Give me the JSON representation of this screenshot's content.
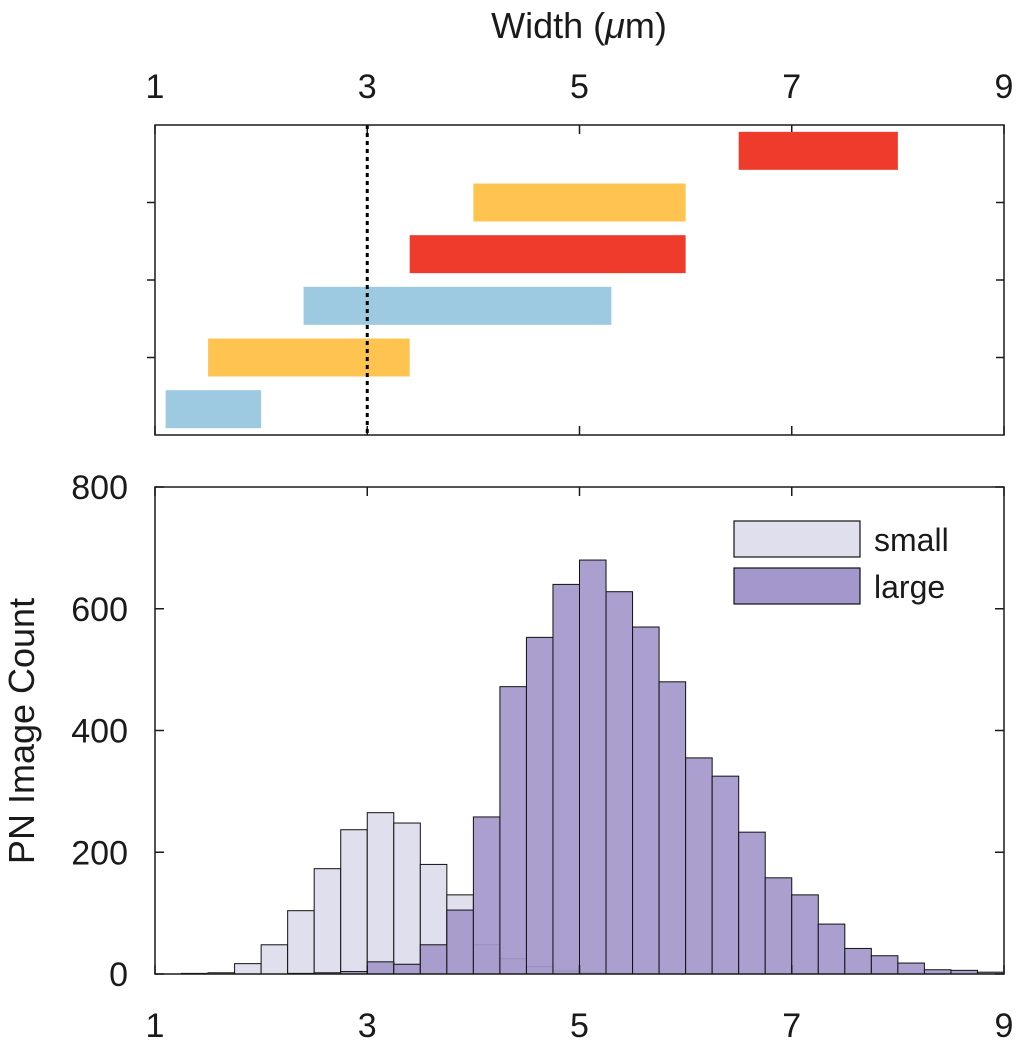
{
  "chart_data": [
    {
      "type": "bar",
      "subtype": "horizontal-range",
      "title": "",
      "xlabel": "Width (μm)",
      "xlabel_parts": {
        "prefix": "Width (",
        "symbol": "μ",
        "suffix": "m)"
      },
      "xlim": [
        1,
        9
      ],
      "xticks": [
        "1",
        "3",
        "5",
        "7",
        "9"
      ],
      "y_tick_count": 3,
      "reference_line": {
        "x": 3,
        "style": "dotted",
        "color": "#000000"
      },
      "ranges": [
        {
          "start": 1.1,
          "end": 2.0,
          "color": "#9ecae1"
        },
        {
          "start": 1.5,
          "end": 3.4,
          "color": "#fec44f"
        },
        {
          "start": 2.4,
          "end": 5.3,
          "color": "#9ecae1"
        },
        {
          "start": 3.4,
          "end": 6.0,
          "color": "#ef3b2c"
        },
        {
          "start": 4.0,
          "end": 6.0,
          "color": "#fec44f"
        },
        {
          "start": 6.5,
          "end": 8.0,
          "color": "#ef3b2c"
        }
      ],
      "grid": false
    },
    {
      "type": "bar",
      "subtype": "histogram",
      "title": "",
      "xlabel": "",
      "ylabel": "PN Image Count",
      "xlim": [
        1,
        9
      ],
      "ylim": [
        0,
        800
      ],
      "xticks": [
        "1",
        "3",
        "5",
        "7",
        "9"
      ],
      "yticks": [
        "0",
        "200",
        "400",
        "600",
        "800"
      ],
      "bin_width": 0.25,
      "legend": {
        "position": "top-right"
      },
      "grid": false,
      "series": [
        {
          "name": "small",
          "color": "#dfdfed",
          "bins": [
            [
              1.25,
              1
            ],
            [
              1.5,
              2
            ],
            [
              1.75,
              17
            ],
            [
              2.0,
              48
            ],
            [
              2.25,
              104
            ],
            [
              2.5,
              173
            ],
            [
              2.75,
              237
            ],
            [
              3.0,
              265
            ],
            [
              3.25,
              248
            ],
            [
              3.5,
              180
            ],
            [
              3.75,
              130
            ],
            [
              4.0,
              48
            ],
            [
              4.25,
              25
            ],
            [
              4.5,
              12
            ],
            [
              4.75,
              5
            ],
            [
              5.0,
              2
            ],
            [
              5.25,
              1
            ]
          ]
        },
        {
          "name": "large",
          "color": "#a497cb",
          "bins": [
            [
              2.25,
              1
            ],
            [
              2.5,
              2
            ],
            [
              2.75,
              4
            ],
            [
              3.0,
              20
            ],
            [
              3.25,
              16
            ],
            [
              3.5,
              48
            ],
            [
              3.75,
              105
            ],
            [
              4.0,
              258
            ],
            [
              4.25,
              472
            ],
            [
              4.5,
              553
            ],
            [
              4.75,
              640
            ],
            [
              5.0,
              680
            ],
            [
              5.25,
              628
            ],
            [
              5.5,
              570
            ],
            [
              5.75,
              480
            ],
            [
              6.0,
              355
            ],
            [
              6.25,
              325
            ],
            [
              6.5,
              233
            ],
            [
              6.75,
              158
            ],
            [
              7.0,
              130
            ],
            [
              7.25,
              82
            ],
            [
              7.5,
              42
            ],
            [
              7.75,
              30
            ],
            [
              8.0,
              18
            ],
            [
              8.25,
              7
            ],
            [
              8.5,
              6
            ],
            [
              8.75,
              3
            ]
          ]
        }
      ]
    }
  ]
}
